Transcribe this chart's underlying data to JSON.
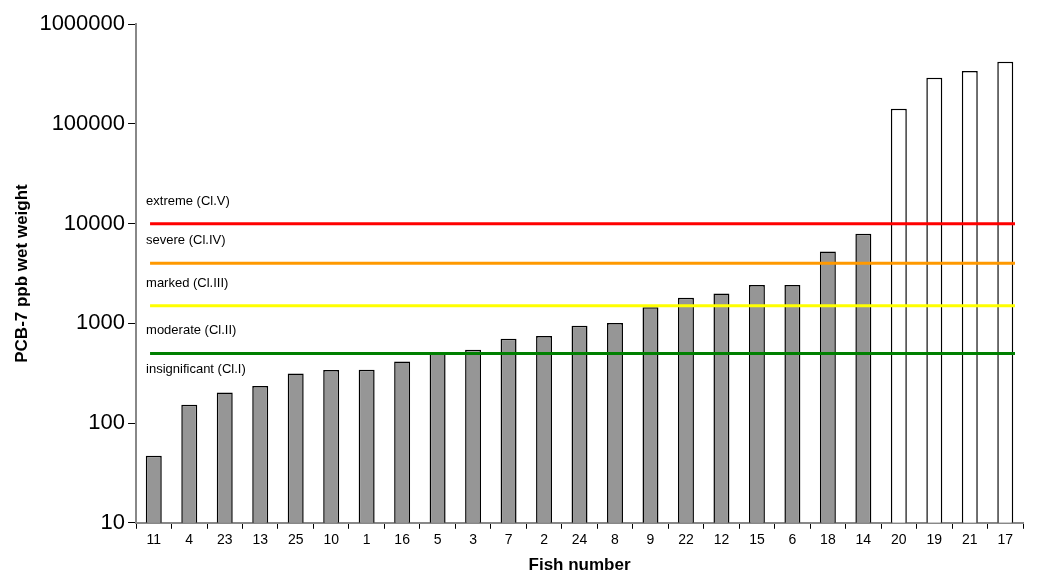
{
  "chart_data": {
    "type": "bar",
    "xlabel": "Fish number",
    "ylabel": "PCB-7 ppb wet weight",
    "categories": [
      "11",
      "4",
      "23",
      "13",
      "25",
      "10",
      "1",
      "16",
      "5",
      "3",
      "7",
      "2",
      "24",
      "8",
      "9",
      "22",
      "12",
      "15",
      "6",
      "18",
      "14",
      "20",
      "19",
      "21",
      "17"
    ],
    "values": [
      47,
      153,
      203,
      236,
      314,
      341,
      343,
      415,
      514,
      543,
      702,
      748,
      949,
      1008,
      1450,
      1803,
      1987,
      2421,
      2421,
      5270,
      7910,
      141800,
      290000,
      340000,
      420000
    ],
    "colors": [
      "#969696",
      "#969696",
      "#969696",
      "#969696",
      "#969696",
      "#969696",
      "#969696",
      "#969696",
      "#969696",
      "#969696",
      "#969696",
      "#969696",
      "#969696",
      "#969696",
      "#969696",
      "#969696",
      "#969696",
      "#969696",
      "#969696",
      "#969696",
      "#969696",
      "#ffffff",
      "#ffffff",
      "#ffffff",
      "#ffffff"
    ],
    "log": "y",
    "ylim": [
      10,
      1000000
    ],
    "yticks": [
      10,
      100,
      1000,
      10000,
      100000,
      1000000
    ],
    "grid": false,
    "legend": false,
    "ref_lines": [
      {
        "axis": "y",
        "value": 10000,
        "label": "extreme (Cl.V)",
        "color": "#ff0000"
      },
      {
        "axis": "y",
        "value": 4000,
        "label": "severe (Cl.IV)",
        "color": "#ff9900"
      },
      {
        "axis": "y",
        "value": 1500,
        "label": "marked (Cl.III)",
        "color": "#ffff00"
      },
      {
        "axis": "y",
        "value": 500,
        "label": "moderate (Cl.II)",
        "color": "#008000"
      }
    ],
    "annotations": [
      "insignificant (Cl.I)"
    ]
  }
}
